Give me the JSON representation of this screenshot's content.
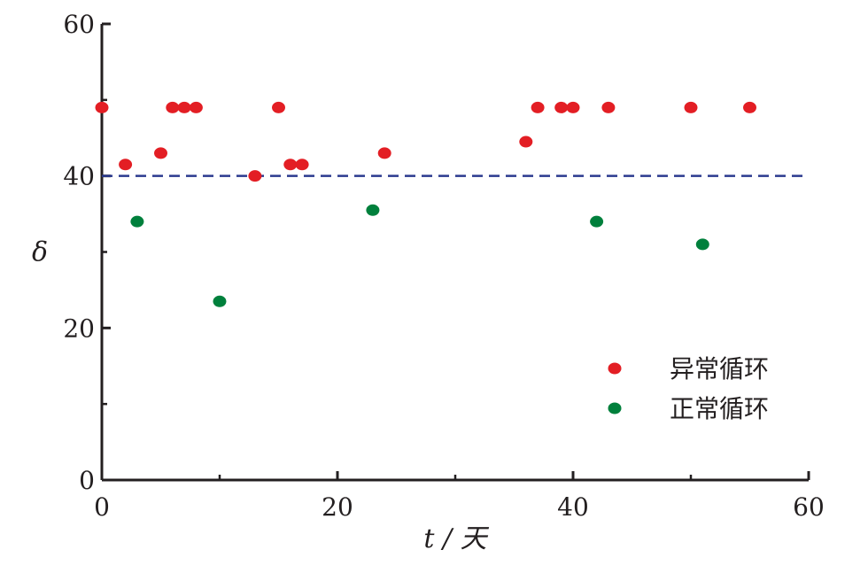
{
  "chart_data": {
    "type": "scatter",
    "title": "",
    "xlabel": "t / 天",
    "ylabel": "δ",
    "xlim": [
      0,
      60
    ],
    "ylim": [
      0,
      60
    ],
    "x_ticks": [
      0,
      20,
      40,
      60
    ],
    "x_minor_ticks": [
      10,
      30,
      50
    ],
    "y_ticks": [
      0,
      20,
      40,
      60
    ],
    "y_minor_ticks": [
      10,
      30,
      50
    ],
    "grid": false,
    "legend_position": "bottom-right",
    "threshold": {
      "y": 40,
      "style": "dashed",
      "color": "#2b3a8f"
    },
    "series": [
      {
        "name": "异常循环",
        "color": "#e31e24",
        "points": [
          [
            0,
            49
          ],
          [
            2,
            41.5
          ],
          [
            5,
            43
          ],
          [
            6,
            49
          ],
          [
            7,
            49
          ],
          [
            8,
            49
          ],
          [
            13,
            40
          ],
          [
            15,
            49
          ],
          [
            16,
            41.5
          ],
          [
            17,
            41.5
          ],
          [
            24,
            43
          ],
          [
            36,
            44.5
          ],
          [
            37,
            49
          ],
          [
            39,
            49
          ],
          [
            40,
            49
          ],
          [
            43,
            49
          ],
          [
            50,
            49
          ],
          [
            55,
            49
          ]
        ]
      },
      {
        "name": "正常循环",
        "color": "#00803c",
        "points": [
          [
            3,
            34
          ],
          [
            10,
            23.5
          ],
          [
            23,
            35.5
          ],
          [
            42,
            34
          ],
          [
            51,
            31
          ]
        ]
      }
    ]
  }
}
